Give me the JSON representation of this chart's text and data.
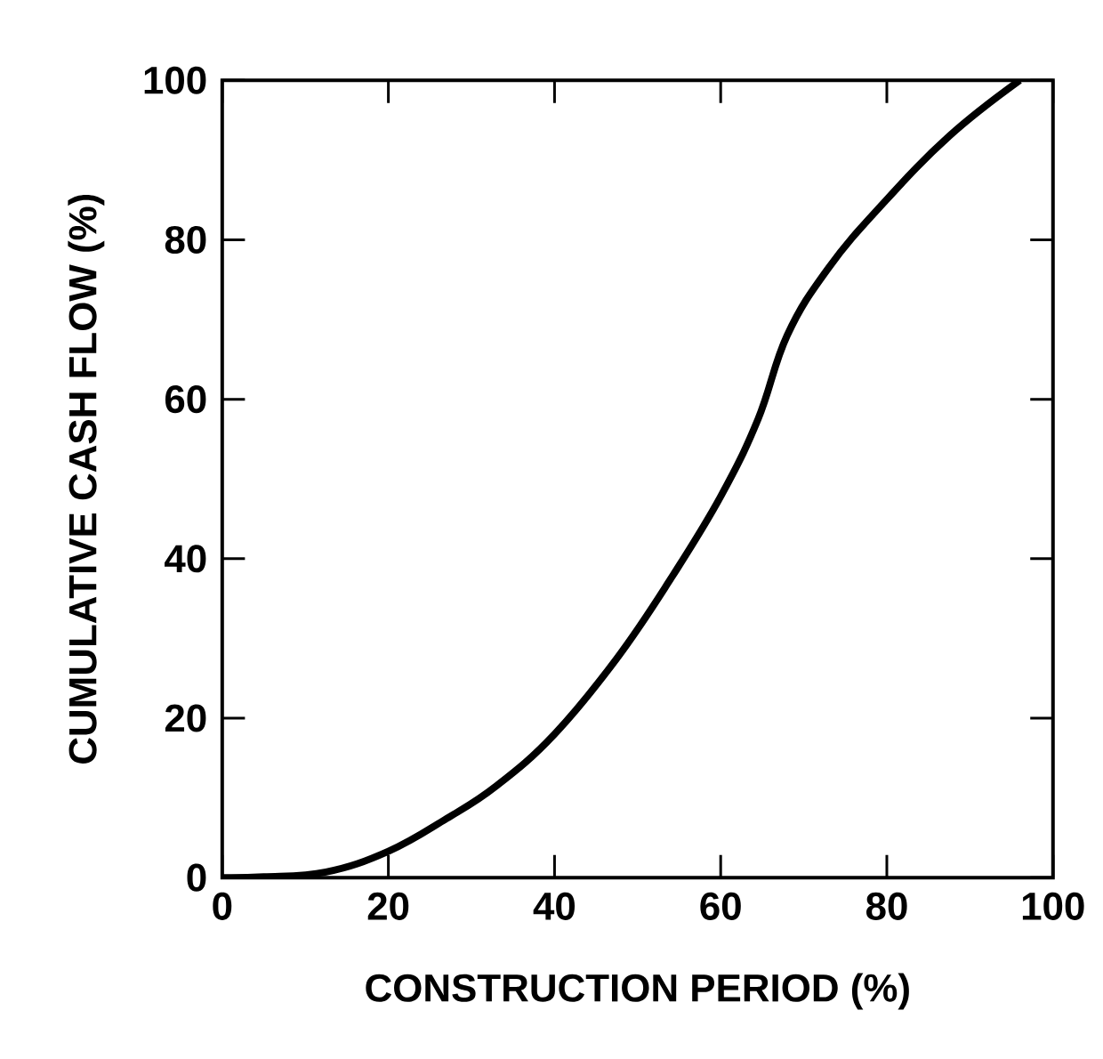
{
  "chart_data": {
    "type": "line",
    "xlabel": "CONSTRUCTION PERIOD (%)",
    "ylabel": "CUMULATIVE CASH FLOW (%)",
    "xlim": [
      0,
      100
    ],
    "ylim": [
      0,
      100
    ],
    "xticks": [
      0,
      20,
      40,
      60,
      80,
      100
    ],
    "yticks": [
      0,
      20,
      40,
      60,
      80,
      100
    ],
    "grid": false,
    "marker": "none",
    "line_style": "solid",
    "series": [
      {
        "color": "#000000",
        "x": [
          0,
          5,
          12.5,
          20,
          27,
          33,
          40,
          47.5,
          54,
          60,
          64.5,
          68,
          73,
          79.5,
          87.5,
          96
        ],
        "values": [
          0,
          0.1,
          0.7,
          3.3,
          7.4,
          11.5,
          18,
          27.5,
          37.5,
          47.8,
          57.5,
          68,
          76.5,
          84.5,
          93,
          100
        ]
      }
    ]
  }
}
